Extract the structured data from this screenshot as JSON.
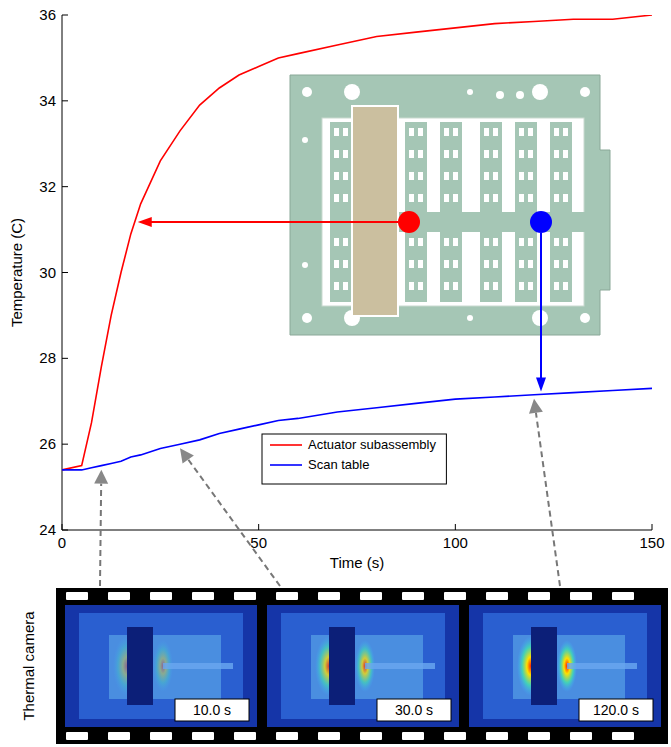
{
  "chart_data": {
    "type": "line",
    "x_label": "Time (s)",
    "y_label": "Temperature (C)",
    "x": [
      0,
      5,
      7.5,
      10,
      12.5,
      15,
      17.5,
      20,
      25,
      30,
      35,
      40,
      45,
      50,
      55,
      60,
      70,
      80,
      90,
      100,
      110,
      120,
      130,
      140,
      150
    ],
    "series": [
      {
        "name": "Actuator subassembly",
        "color": "#ff0000",
        "values": [
          25.4,
          25.5,
          26.5,
          27.8,
          29.0,
          30.0,
          30.9,
          31.6,
          32.6,
          33.3,
          33.9,
          34.3,
          34.6,
          34.8,
          35.0,
          35.1,
          35.3,
          35.5,
          35.6,
          35.7,
          35.8,
          35.85,
          35.9,
          35.9,
          36.0
        ]
      },
      {
        "name": "Scan table",
        "color": "#0000ff",
        "values": [
          25.4,
          25.4,
          25.45,
          25.5,
          25.55,
          25.6,
          25.7,
          25.75,
          25.9,
          26.0,
          26.1,
          26.25,
          26.35,
          26.45,
          26.55,
          26.6,
          26.75,
          26.85,
          26.95,
          27.05,
          27.1,
          27.15,
          27.2,
          27.25,
          27.3
        ]
      }
    ],
    "xlim": [
      0,
      150
    ],
    "ylim": [
      24,
      36
    ],
    "xticks": [
      0,
      50,
      100,
      150
    ],
    "yticks": [
      24,
      26,
      28,
      30,
      32,
      34,
      36
    ],
    "legend": "center",
    "grid": false
  },
  "thermal_camera": {
    "label": "Thermal camera",
    "frames": [
      {
        "time": 10,
        "label": "10.0 s"
      },
      {
        "time": 30,
        "label": "30.0 s"
      },
      {
        "time": 120,
        "label": "120.0 s"
      }
    ]
  }
}
